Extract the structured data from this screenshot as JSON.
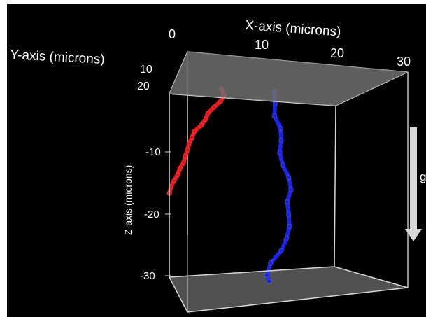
{
  "chart_data": {
    "type": "scatter",
    "projection": "3d",
    "colors": {
      "background": "#000000",
      "box_edge": "#d8d8d8",
      "floor": "#5a5a5a",
      "ceiling": "#6e6e6e",
      "gravity_arrow": "#d9d9d9"
    },
    "axes": {
      "x": {
        "label": "X-axis (microns)",
        "ticks": [
          "0",
          "10",
          "20",
          "30"
        ],
        "range": [
          0,
          30
        ]
      },
      "y": {
        "label": "Y-axis (microns)",
        "ticks": [
          "10",
          "20"
        ],
        "range": [
          0,
          30
        ]
      },
      "z": {
        "label": "Z-axis (microns)",
        "ticks": [
          "-10",
          "-20",
          "-30"
        ],
        "range": [
          -32,
          0
        ]
      }
    },
    "gravity_label": "g",
    "series": [
      {
        "color": "#e8141c",
        "points": [
          [
            5.9,
            0,
            0
          ],
          [
            6.2,
            0,
            -1
          ],
          [
            5.8,
            0,
            -2
          ],
          [
            4.9,
            0,
            -3
          ],
          [
            4.1,
            0,
            -4
          ],
          [
            3.8,
            0,
            -5
          ],
          [
            3.2,
            0,
            -6
          ],
          [
            2.3,
            0,
            -7
          ],
          [
            2.0,
            0,
            -8
          ],
          [
            1.6,
            0,
            -9
          ],
          [
            1.4,
            0,
            -10
          ],
          [
            1.1,
            0,
            -11
          ],
          [
            0.9,
            0,
            -12
          ],
          [
            0.4,
            0,
            -13
          ],
          [
            0.1,
            0,
            -14
          ],
          [
            -0.4,
            0,
            -15
          ],
          [
            -0.8,
            0,
            -16
          ],
          [
            -1.0,
            0,
            -17
          ]
        ]
      },
      {
        "color": "#1b24e6",
        "points": [
          [
            12.9,
            0,
            0
          ],
          [
            13.0,
            0,
            -2
          ],
          [
            12.9,
            0,
            -4
          ],
          [
            13.7,
            0,
            -6
          ],
          [
            13.8,
            0,
            -8
          ],
          [
            13.6,
            0,
            -10
          ],
          [
            14.0,
            0,
            -12
          ],
          [
            14.8,
            0,
            -14
          ],
          [
            15.1,
            0,
            -16
          ],
          [
            14.6,
            0,
            -18
          ],
          [
            14.8,
            0,
            -20
          ],
          [
            14.9,
            0,
            -22
          ],
          [
            14.5,
            0,
            -24
          ],
          [
            13.8,
            0,
            -26
          ],
          [
            12.4,
            0,
            -28
          ],
          [
            11.9,
            0,
            -30
          ],
          [
            12.2,
            0,
            -31
          ]
        ]
      }
    ]
  }
}
